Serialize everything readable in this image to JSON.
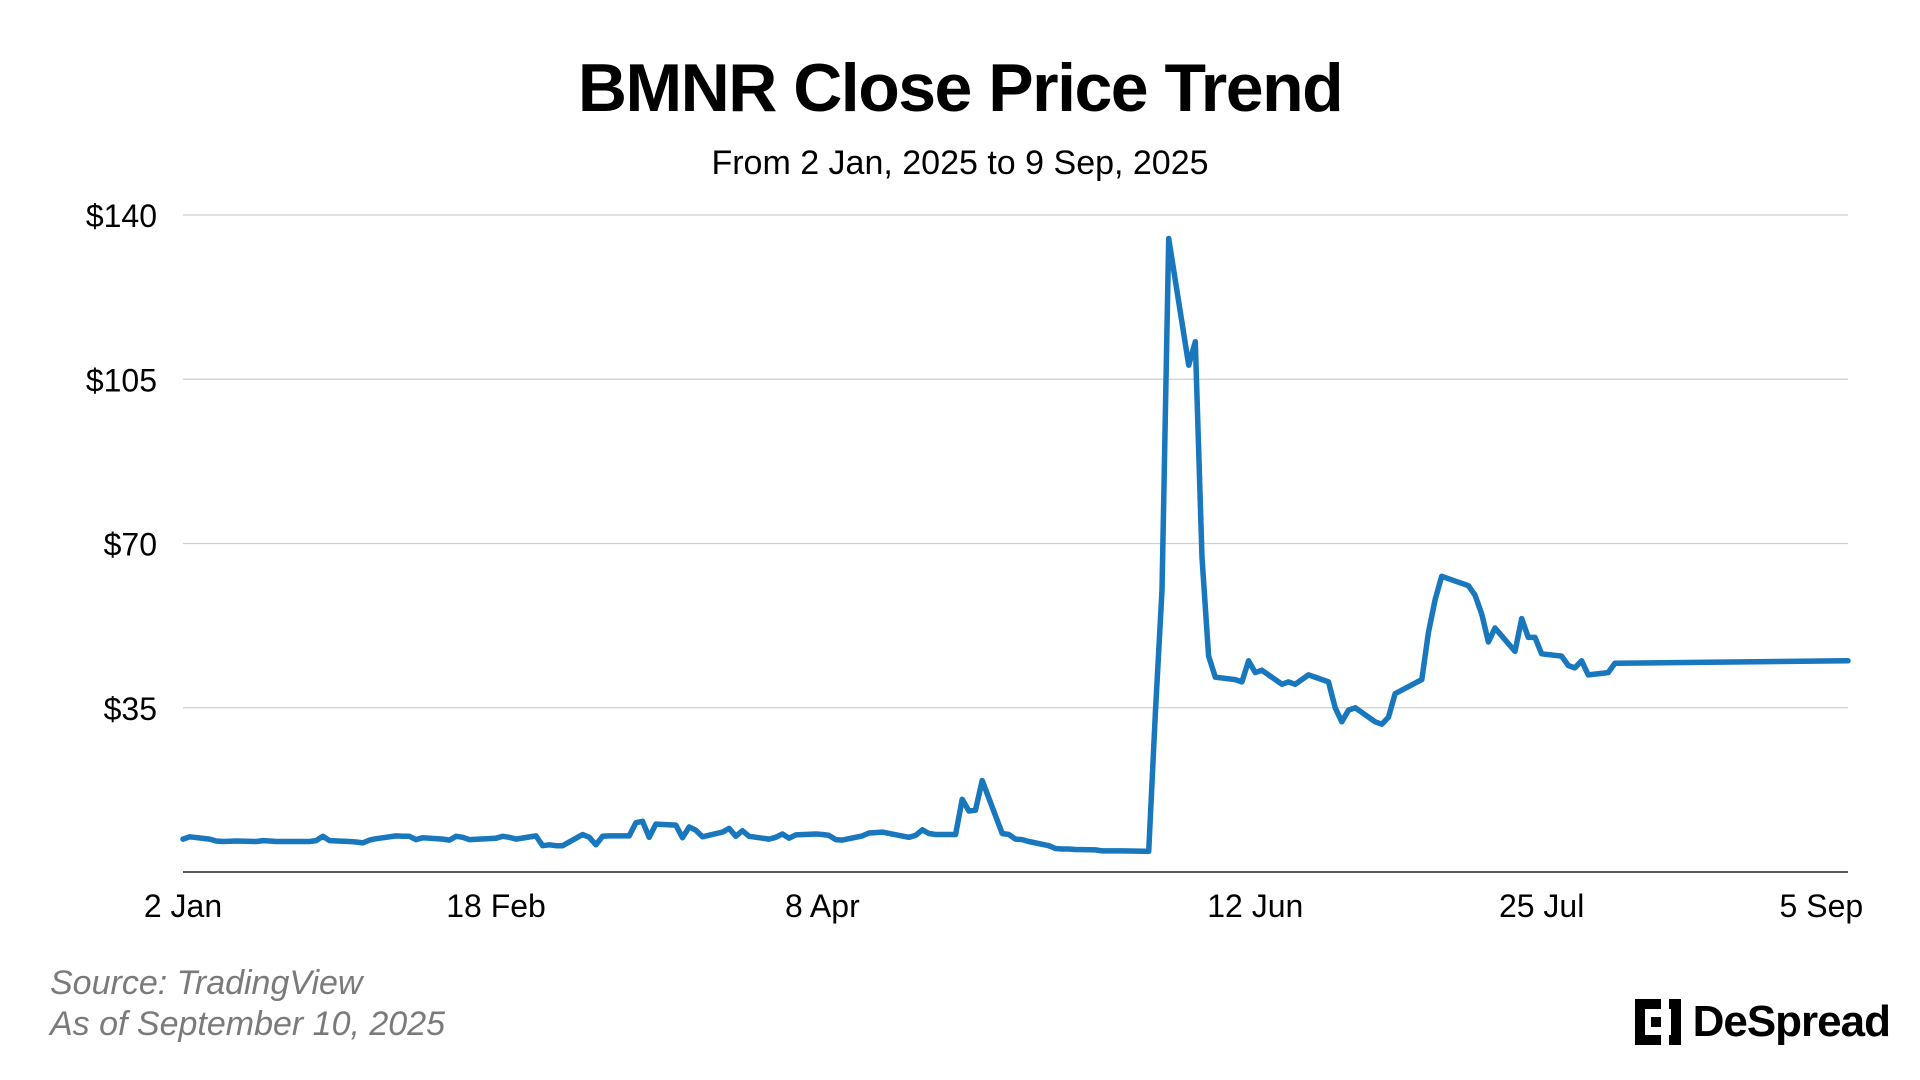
{
  "chart_data": {
    "type": "line",
    "title": "BMNR Close Price Trend",
    "subtitle": "From 2 Jan, 2025 to 9 Sep, 2025",
    "xlabel": "",
    "ylabel": "",
    "y_tick_labels": [
      "$140",
      "$105",
      "$70",
      "$35"
    ],
    "y_ticks": [
      140,
      105,
      70,
      35
    ],
    "ylim": [
      0,
      140
    ],
    "x_tick_labels": [
      "2 Jan",
      "18 Feb",
      "8 Apr",
      "12 Jun",
      "25 Jul",
      "5 Sep"
    ],
    "x_tick_dates": [
      "2025-01-02",
      "2025-02-18",
      "2025-04-08",
      "2025-06-12",
      "2025-07-25",
      "2025-09-05"
    ],
    "grid": true,
    "series": [
      {
        "color": "#1877BD",
        "points": [
          [
            "2025-01-02",
            7.0
          ],
          [
            "2025-01-03",
            7.5
          ],
          [
            "2025-01-06",
            7.0
          ],
          [
            "2025-01-07",
            6.6
          ],
          [
            "2025-01-08",
            6.5
          ],
          [
            "2025-01-10",
            6.6
          ],
          [
            "2025-01-13",
            6.5
          ],
          [
            "2025-01-14",
            6.7
          ],
          [
            "2025-01-15",
            6.6
          ],
          [
            "2025-01-16",
            6.5
          ],
          [
            "2025-01-17",
            6.5
          ],
          [
            "2025-01-21",
            6.5
          ],
          [
            "2025-01-22",
            6.7
          ],
          [
            "2025-01-23",
            7.6
          ],
          [
            "2025-01-24",
            6.7
          ],
          [
            "2025-01-27",
            6.5
          ],
          [
            "2025-01-28",
            6.4
          ],
          [
            "2025-01-29",
            6.2
          ],
          [
            "2025-01-30",
            6.8
          ],
          [
            "2025-01-31",
            7.1
          ],
          [
            "2025-02-03",
            7.7
          ],
          [
            "2025-02-04",
            7.6
          ],
          [
            "2025-02-05",
            7.6
          ],
          [
            "2025-02-06",
            6.9
          ],
          [
            "2025-02-07",
            7.3
          ],
          [
            "2025-02-10",
            7.0
          ],
          [
            "2025-02-11",
            6.8
          ],
          [
            "2025-02-12",
            7.6
          ],
          [
            "2025-02-13",
            7.4
          ],
          [
            "2025-02-14",
            6.9
          ],
          [
            "2025-02-18",
            7.2
          ],
          [
            "2025-02-19",
            7.6
          ],
          [
            "2025-02-20",
            7.4
          ],
          [
            "2025-02-21",
            7.0
          ],
          [
            "2025-02-24",
            7.7
          ],
          [
            "2025-02-25",
            5.6
          ],
          [
            "2025-02-26",
            5.8
          ],
          [
            "2025-02-27",
            5.6
          ],
          [
            "2025-02-28",
            5.6
          ],
          [
            "2025-03-03",
            8.0
          ],
          [
            "2025-03-04",
            7.4
          ],
          [
            "2025-03-05",
            5.8
          ],
          [
            "2025-03-06",
            7.6
          ],
          [
            "2025-03-07",
            7.7
          ],
          [
            "2025-03-10",
            7.7
          ],
          [
            "2025-03-11",
            10.5
          ],
          [
            "2025-03-12",
            10.8
          ],
          [
            "2025-03-13",
            7.4
          ],
          [
            "2025-03-14",
            10.2
          ],
          [
            "2025-03-17",
            10.0
          ],
          [
            "2025-03-18",
            7.3
          ],
          [
            "2025-03-19",
            9.6
          ],
          [
            "2025-03-20",
            8.9
          ],
          [
            "2025-03-21",
            7.5
          ],
          [
            "2025-03-24",
            8.5
          ],
          [
            "2025-03-25",
            9.3
          ],
          [
            "2025-03-26",
            7.6
          ],
          [
            "2025-03-27",
            8.8
          ],
          [
            "2025-03-28",
            7.6
          ],
          [
            "2025-03-31",
            7.0
          ],
          [
            "2025-04-01",
            7.4
          ],
          [
            "2025-04-02",
            8.1
          ],
          [
            "2025-04-03",
            7.2
          ],
          [
            "2025-04-04",
            7.9
          ],
          [
            "2025-04-07",
            8.1
          ],
          [
            "2025-04-08",
            8.0
          ],
          [
            "2025-04-09",
            7.8
          ],
          [
            "2025-04-10",
            6.9
          ],
          [
            "2025-04-11",
            6.8
          ],
          [
            "2025-04-14",
            7.7
          ],
          [
            "2025-04-15",
            8.3
          ],
          [
            "2025-04-16",
            8.4
          ],
          [
            "2025-04-17",
            8.5
          ],
          [
            "2025-04-21",
            7.4
          ],
          [
            "2025-04-22",
            7.8
          ],
          [
            "2025-04-23",
            9.0
          ],
          [
            "2025-04-24",
            8.2
          ],
          [
            "2025-04-25",
            8.0
          ],
          [
            "2025-04-28",
            8.0
          ],
          [
            "2025-04-29",
            15.5
          ],
          [
            "2025-04-30",
            13.0
          ],
          [
            "2025-05-01",
            13.2
          ],
          [
            "2025-05-02",
            19.5
          ],
          [
            "2025-05-05",
            8.2
          ],
          [
            "2025-05-06",
            8.0
          ],
          [
            "2025-05-07",
            7.0
          ],
          [
            "2025-05-08",
            6.9
          ],
          [
            "2025-05-09",
            6.5
          ],
          [
            "2025-05-12",
            5.6
          ],
          [
            "2025-05-13",
            5.0
          ],
          [
            "2025-05-14",
            4.9
          ],
          [
            "2025-05-15",
            4.9
          ],
          [
            "2025-05-16",
            4.8
          ],
          [
            "2025-05-19",
            4.7
          ],
          [
            "2025-05-20",
            4.5
          ],
          [
            "2025-05-21",
            4.5
          ],
          [
            "2025-05-22",
            4.5
          ],
          [
            "2025-05-23",
            4.5
          ],
          [
            "2025-05-27",
            4.4
          ],
          [
            "2025-05-28",
            34.0
          ],
          [
            "2025-05-29",
            60.0
          ],
          [
            "2025-05-30",
            135.0
          ],
          [
            "2025-06-02",
            108.0
          ],
          [
            "2025-06-03",
            113.0
          ],
          [
            "2025-06-04",
            67.0
          ],
          [
            "2025-06-05",
            46.0
          ],
          [
            "2025-06-06",
            41.5
          ],
          [
            "2025-06-09",
            41.0
          ],
          [
            "2025-06-10",
            40.5
          ],
          [
            "2025-06-11",
            45.0
          ],
          [
            "2025-06-12",
            42.5
          ],
          [
            "2025-06-13",
            43.0
          ],
          [
            "2025-06-16",
            40.0
          ],
          [
            "2025-06-17",
            40.5
          ],
          [
            "2025-06-18",
            40.0
          ],
          [
            "2025-06-20",
            42.0
          ],
          [
            "2025-06-23",
            40.5
          ],
          [
            "2025-06-24",
            35.0
          ],
          [
            "2025-06-25",
            32.0
          ],
          [
            "2025-06-26",
            34.5
          ],
          [
            "2025-06-27",
            35.0
          ],
          [
            "2025-06-30",
            32.0
          ],
          [
            "2025-07-01",
            31.5
          ],
          [
            "2025-07-02",
            33.0
          ],
          [
            "2025-07-03",
            38.0
          ],
          [
            "2025-07-07",
            41.0
          ],
          [
            "2025-07-08",
            51.0
          ],
          [
            "2025-07-09",
            58.0
          ],
          [
            "2025-07-10",
            63.0
          ],
          [
            "2025-07-11",
            62.5
          ],
          [
            "2025-07-14",
            61.0
          ],
          [
            "2025-07-15",
            59.0
          ],
          [
            "2025-07-16",
            55.0
          ],
          [
            "2025-07-17",
            49.0
          ],
          [
            "2025-07-18",
            52.0
          ],
          [
            "2025-07-21",
            47.0
          ],
          [
            "2025-07-22",
            54.0
          ],
          [
            "2025-07-23",
            50.0
          ],
          [
            "2025-07-24",
            50.0
          ],
          [
            "2025-07-25",
            46.5
          ],
          [
            "2025-07-28",
            46.0
          ],
          [
            "2025-07-29",
            44.0
          ],
          [
            "2025-07-30",
            43.5
          ],
          [
            "2025-07-31",
            45.0
          ],
          [
            "2025-08-01",
            42.0
          ],
          [
            "2025-08-04",
            42.5
          ],
          [
            "2025-08-05",
            44.5
          ],
          [
            "2025-09-09",
            45.0
          ]
        ]
      }
    ]
  },
  "footer": {
    "source": "Source: TradingView",
    "as_of": "As of September 10, 2025"
  },
  "brand": {
    "name": "DeSpread",
    "logo_icon": "despread-logo-icon"
  }
}
